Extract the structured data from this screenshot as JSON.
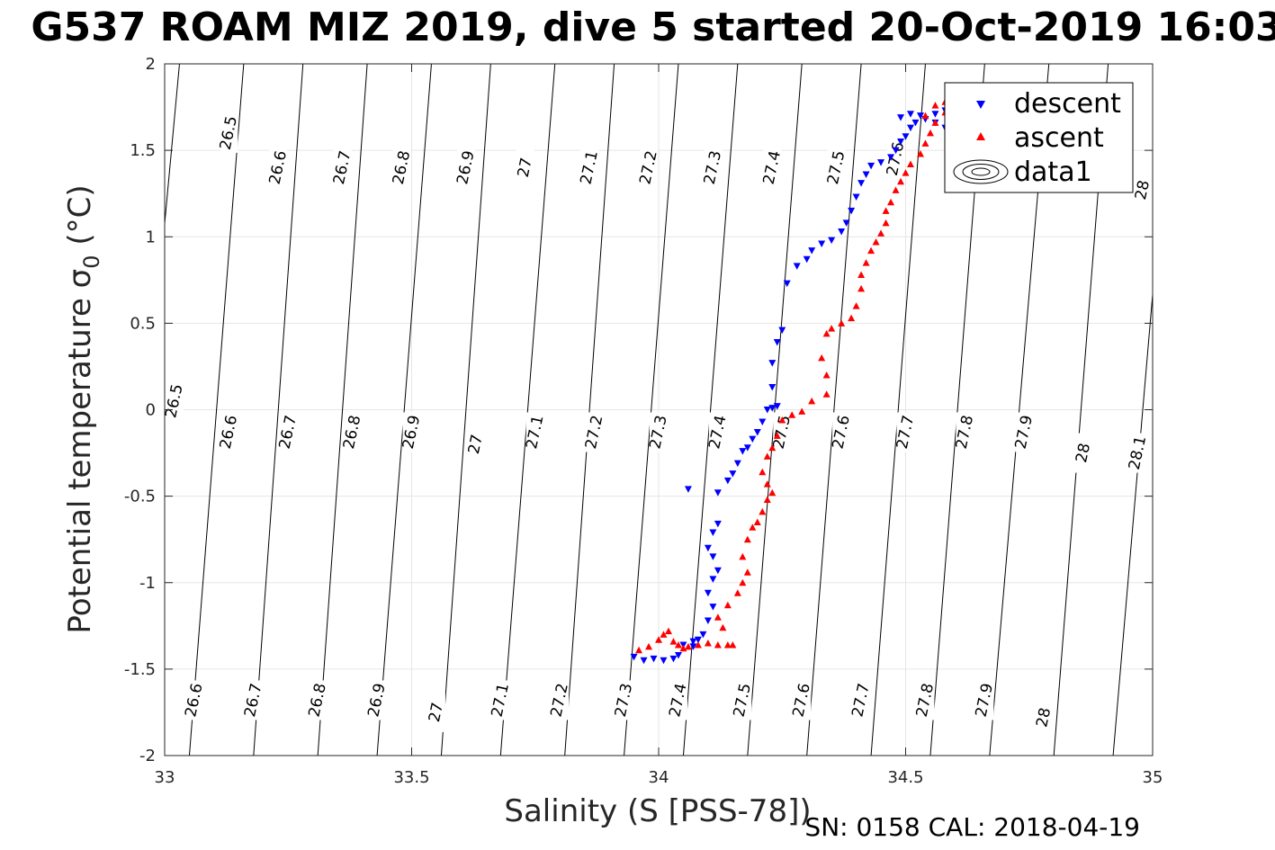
{
  "chart_data": {
    "type": "scatter",
    "title": "G537 ROAM MIZ 2019, dive 5 started 20-Oct-2019 16:03",
    "xlabel": "Salinity (S [PSS-78])",
    "ylabel": "Potential temperature σ",
    "ylabel_subscript": "0",
    "ylabel_unit": " (°C)",
    "xlim": [
      33,
      35
    ],
    "ylim": [
      -2,
      2
    ],
    "xticks": [
      33,
      33.5,
      34,
      34.5,
      35
    ],
    "xtick_labels": [
      "33",
      "33.5",
      "34",
      "34.5",
      "35"
    ],
    "yticks": [
      -2,
      -1.5,
      -1,
      -0.5,
      0,
      0.5,
      1,
      1.5,
      2
    ],
    "ytick_labels": [
      "-2",
      "-1.5",
      "-1",
      "-0.5",
      "0",
      "0.5",
      "1",
      "1.5",
      "2"
    ],
    "grid": true,
    "legend_position": "top-right",
    "footer": "SN: 0158  CAL: 2018-04-19",
    "contours": {
      "levels": [
        26.5,
        26.6,
        26.7,
        26.8,
        26.9,
        27.0,
        27.1,
        27.2,
        27.3,
        27.4,
        27.5,
        27.6,
        27.7,
        27.8,
        27.9,
        28.0,
        28.1
      ],
      "s_at_bottom": [
        32.9,
        33.05,
        33.18,
        33.31,
        33.43,
        33.56,
        33.68,
        33.81,
        33.93,
        34.05,
        34.18,
        34.3,
        34.43,
        34.55,
        34.67,
        34.8,
        34.92
      ],
      "s_at_top": [
        33.03,
        33.16,
        33.28,
        33.41,
        33.54,
        33.66,
        33.79,
        33.91,
        34.04,
        34.16,
        34.29,
        34.41,
        34.54,
        34.66,
        34.79,
        34.91,
        35.04
      ]
    },
    "contour_labels": [
      {
        "text": "26.5",
        "s": 33.13,
        "t": 1.6
      },
      {
        "text": "26.6",
        "s": 33.23,
        "t": 1.4
      },
      {
        "text": "26.7",
        "s": 33.36,
        "t": 1.4
      },
      {
        "text": "26.8",
        "s": 33.48,
        "t": 1.4
      },
      {
        "text": "26.9",
        "s": 33.61,
        "t": 1.4
      },
      {
        "text": "27",
        "s": 33.73,
        "t": 1.4
      },
      {
        "text": "27.1",
        "s": 33.86,
        "t": 1.4
      },
      {
        "text": "27.2",
        "s": 33.98,
        "t": 1.4
      },
      {
        "text": "27.3",
        "s": 34.11,
        "t": 1.4
      },
      {
        "text": "27.4",
        "s": 34.23,
        "t": 1.4
      },
      {
        "text": "27.5",
        "s": 34.36,
        "t": 1.4
      },
      {
        "text": "27.6",
        "s": 34.48,
        "t": 1.45
      },
      {
        "text": "28",
        "s": 34.98,
        "t": 1.27
      },
      {
        "text": "26.5",
        "s": 33.02,
        "t": 0.05
      },
      {
        "text": "26.6",
        "s": 33.13,
        "t": -0.13
      },
      {
        "text": "26.7",
        "s": 33.25,
        "t": -0.13
      },
      {
        "text": "26.8",
        "s": 33.38,
        "t": -0.13
      },
      {
        "text": "26.9",
        "s": 33.5,
        "t": -0.13
      },
      {
        "text": "27",
        "s": 33.63,
        "t": -0.2
      },
      {
        "text": "27.1",
        "s": 33.75,
        "t": -0.13
      },
      {
        "text": "27.2",
        "s": 33.87,
        "t": -0.13
      },
      {
        "text": "27.3",
        "s": 34.0,
        "t": -0.13
      },
      {
        "text": "27.4",
        "s": 34.12,
        "t": -0.13
      },
      {
        "text": "27.5",
        "s": 34.25,
        "t": -0.13
      },
      {
        "text": "27.6",
        "s": 34.37,
        "t": -0.13
      },
      {
        "text": "27.7",
        "s": 34.5,
        "t": -0.13
      },
      {
        "text": "27.8",
        "s": 34.62,
        "t": -0.13
      },
      {
        "text": "27.9",
        "s": 34.74,
        "t": -0.13
      },
      {
        "text": "28",
        "s": 34.86,
        "t": -0.25
      },
      {
        "text": "28.1",
        "s": 34.97,
        "t": -0.25
      },
      {
        "text": "26.6",
        "s": 33.06,
        "t": -1.68
      },
      {
        "text": "26.7",
        "s": 33.18,
        "t": -1.68
      },
      {
        "text": "26.8",
        "s": 33.31,
        "t": -1.68
      },
      {
        "text": "26.9",
        "s": 33.43,
        "t": -1.68
      },
      {
        "text": "27",
        "s": 33.55,
        "t": -1.75
      },
      {
        "text": "27.1",
        "s": 33.68,
        "t": -1.68
      },
      {
        "text": "27.2",
        "s": 33.8,
        "t": -1.68
      },
      {
        "text": "27.3",
        "s": 33.93,
        "t": -1.68
      },
      {
        "text": "27.4",
        "s": 34.04,
        "t": -1.68
      },
      {
        "text": "27.5",
        "s": 34.17,
        "t": -1.68
      },
      {
        "text": "27.6",
        "s": 34.29,
        "t": -1.68
      },
      {
        "text": "27.7",
        "s": 34.41,
        "t": -1.68
      },
      {
        "text": "27.8",
        "s": 34.54,
        "t": -1.68
      },
      {
        "text": "27.9",
        "s": 34.66,
        "t": -1.68
      },
      {
        "text": "28",
        "s": 34.78,
        "t": -1.78
      }
    ],
    "series": [
      {
        "name": "descent",
        "color": "#0000ff",
        "marker": "triangle-down",
        "points": [
          [
            33.95,
            -1.43
          ],
          [
            33.97,
            -1.45
          ],
          [
            33.99,
            -1.44
          ],
          [
            34.01,
            -1.45
          ],
          [
            34.03,
            -1.44
          ],
          [
            34.04,
            -1.42
          ],
          [
            34.05,
            -1.36
          ],
          [
            34.07,
            -1.34
          ],
          [
            34.08,
            -1.33
          ],
          [
            34.07,
            -1.37
          ],
          [
            34.09,
            -1.3
          ],
          [
            34.1,
            -1.22
          ],
          [
            34.11,
            -1.14
          ],
          [
            34.1,
            -1.06
          ],
          [
            34.11,
            -0.98
          ],
          [
            34.12,
            -0.93
          ],
          [
            34.11,
            -0.85
          ],
          [
            34.1,
            -0.8
          ],
          [
            34.12,
            -0.66
          ],
          [
            34.11,
            -0.71
          ],
          [
            34.06,
            -0.46
          ],
          [
            34.12,
            -0.48
          ],
          [
            34.14,
            -0.41
          ],
          [
            34.15,
            -0.37
          ],
          [
            34.16,
            -0.31
          ],
          [
            34.17,
            -0.24
          ],
          [
            34.18,
            -0.22
          ],
          [
            34.19,
            -0.17
          ],
          [
            34.2,
            -0.13
          ],
          [
            34.21,
            -0.07
          ],
          [
            34.22,
            0.0
          ],
          [
            34.23,
            0.01
          ],
          [
            34.24,
            0.02
          ],
          [
            34.23,
            0.13
          ],
          [
            34.23,
            0.27
          ],
          [
            34.24,
            0.39
          ],
          [
            34.25,
            0.46
          ],
          [
            34.26,
            0.73
          ],
          [
            34.28,
            0.83
          ],
          [
            34.3,
            0.87
          ],
          [
            34.31,
            0.92
          ],
          [
            34.33,
            0.96
          ],
          [
            34.35,
            0.98
          ],
          [
            34.37,
            1.03
          ],
          [
            34.38,
            1.08
          ],
          [
            34.39,
            1.15
          ],
          [
            34.4,
            1.23
          ],
          [
            34.41,
            1.31
          ],
          [
            34.42,
            1.36
          ],
          [
            34.43,
            1.41
          ],
          [
            34.45,
            1.43
          ],
          [
            34.47,
            1.46
          ],
          [
            34.48,
            1.5
          ],
          [
            34.49,
            1.55
          ],
          [
            34.5,
            1.58
          ],
          [
            34.51,
            1.63
          ],
          [
            34.52,
            1.66
          ],
          [
            34.54,
            1.68
          ],
          [
            34.56,
            1.71
          ],
          [
            34.58,
            1.73
          ],
          [
            34.6,
            1.72
          ],
          [
            34.59,
            1.68
          ],
          [
            34.58,
            1.63
          ],
          [
            34.56,
            1.66
          ],
          [
            34.53,
            1.7
          ],
          [
            34.51,
            1.71
          ],
          [
            34.49,
            1.69
          ]
        ]
      },
      {
        "name": "ascent",
        "color": "#ff0000",
        "marker": "triangle-up",
        "points": [
          [
            33.96,
            -1.39
          ],
          [
            33.98,
            -1.37
          ],
          [
            34.0,
            -1.33
          ],
          [
            34.01,
            -1.3
          ],
          [
            34.02,
            -1.28
          ],
          [
            34.03,
            -1.34
          ],
          [
            34.04,
            -1.36
          ],
          [
            34.05,
            -1.38
          ],
          [
            34.06,
            -1.37
          ],
          [
            34.08,
            -1.36
          ],
          [
            34.1,
            -1.35
          ],
          [
            34.12,
            -1.36
          ],
          [
            34.14,
            -1.36
          ],
          [
            34.15,
            -1.36
          ],
          [
            34.13,
            -1.26
          ],
          [
            34.12,
            -1.2
          ],
          [
            34.14,
            -1.13
          ],
          [
            34.16,
            -1.06
          ],
          [
            34.17,
            -1.0
          ],
          [
            34.18,
            -0.94
          ],
          [
            34.17,
            -0.85
          ],
          [
            34.18,
            -0.75
          ],
          [
            34.19,
            -0.68
          ],
          [
            34.2,
            -0.65
          ],
          [
            34.21,
            -0.59
          ],
          [
            34.22,
            -0.52
          ],
          [
            34.23,
            -0.48
          ],
          [
            34.22,
            -0.43
          ],
          [
            34.21,
            -0.36
          ],
          [
            34.22,
            -0.27
          ],
          [
            34.23,
            -0.22
          ],
          [
            34.24,
            -0.15
          ],
          [
            34.25,
            -0.06
          ],
          [
            34.27,
            -0.03
          ],
          [
            34.29,
            -0.01
          ],
          [
            34.31,
            0.05
          ],
          [
            34.34,
            0.09
          ],
          [
            34.34,
            0.2
          ],
          [
            34.33,
            0.3
          ],
          [
            34.34,
            0.44
          ],
          [
            34.35,
            0.47
          ],
          [
            34.37,
            0.5
          ],
          [
            34.39,
            0.53
          ],
          [
            34.4,
            0.6
          ],
          [
            34.41,
            0.7
          ],
          [
            34.41,
            0.78
          ],
          [
            34.42,
            0.85
          ],
          [
            34.43,
            0.92
          ],
          [
            34.44,
            0.97
          ],
          [
            34.45,
            1.02
          ],
          [
            34.46,
            1.08
          ],
          [
            34.46,
            1.15
          ],
          [
            34.47,
            1.2
          ],
          [
            34.48,
            1.27
          ],
          [
            34.49,
            1.32
          ],
          [
            34.5,
            1.37
          ],
          [
            34.51,
            1.42
          ],
          [
            34.53,
            1.48
          ],
          [
            34.54,
            1.54
          ],
          [
            34.55,
            1.6
          ],
          [
            34.56,
            1.66
          ],
          [
            34.58,
            1.72
          ],
          [
            34.6,
            1.77
          ],
          [
            34.58,
            1.78
          ],
          [
            34.56,
            1.76
          ],
          [
            34.54,
            1.7
          ]
        ]
      },
      {
        "name": "data1",
        "color": "#000000",
        "marker": "contour",
        "points": []
      }
    ]
  }
}
